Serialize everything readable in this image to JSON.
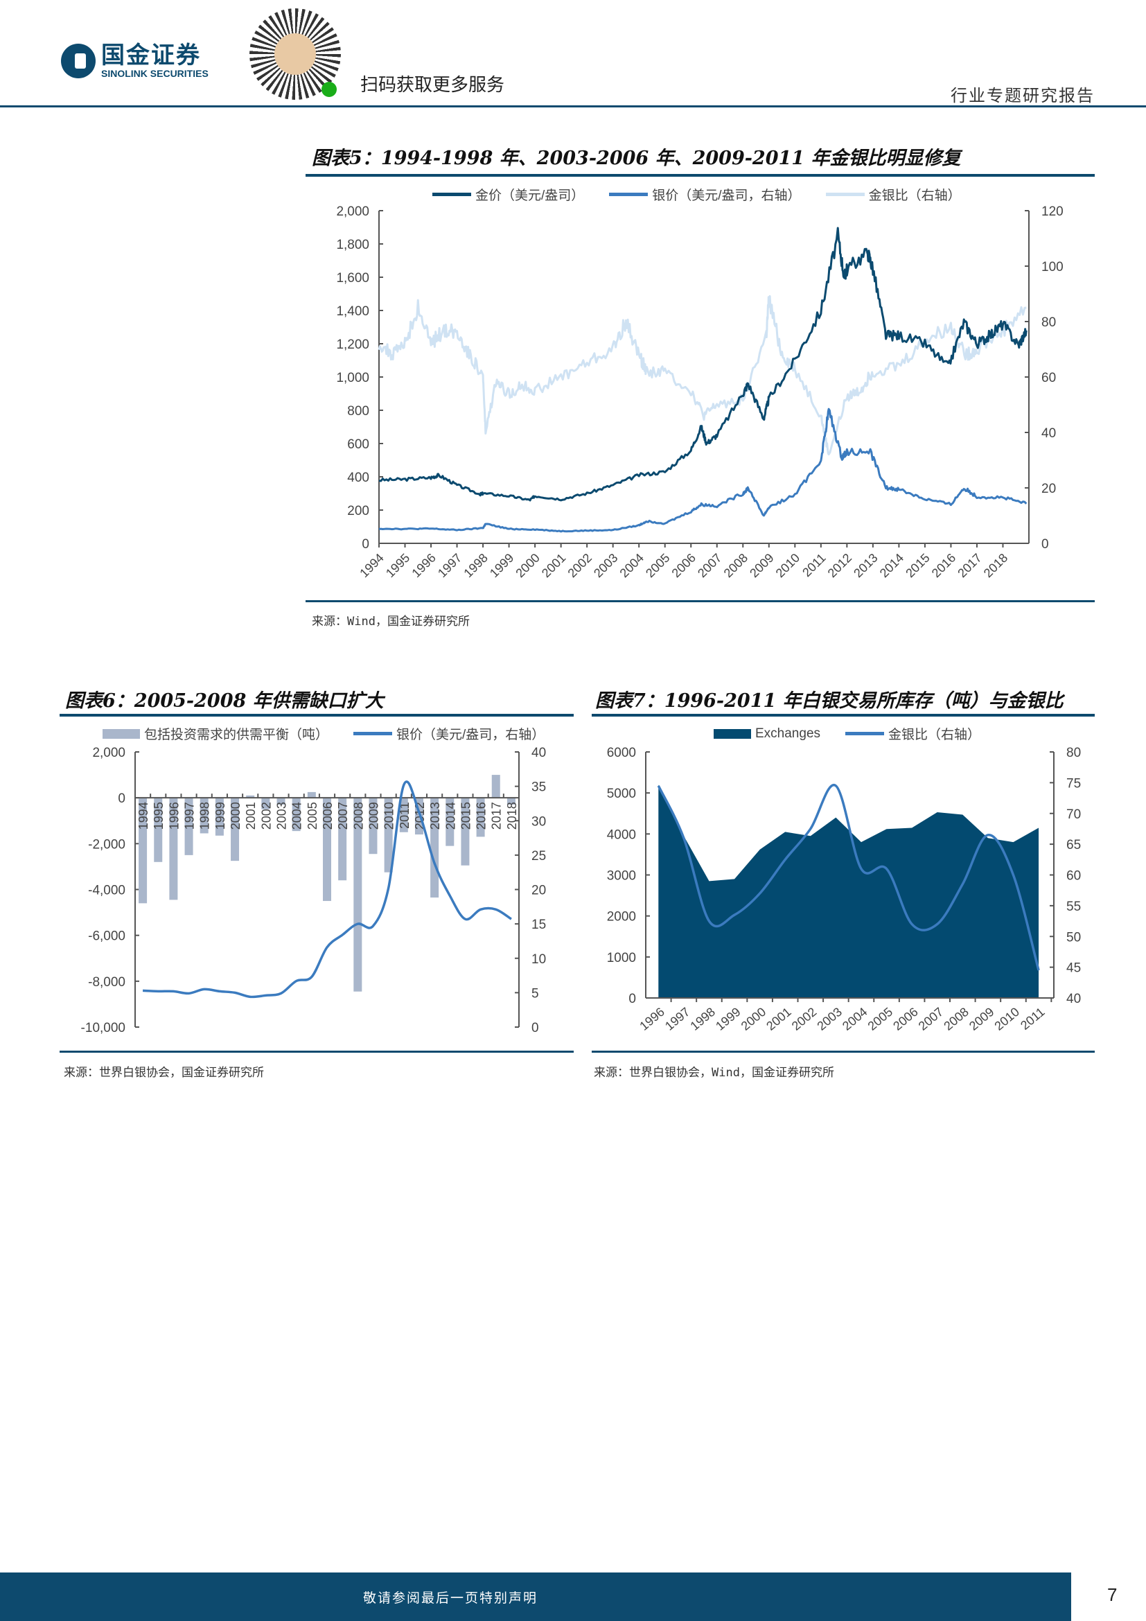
{
  "header": {
    "logo_cn": "国金证券",
    "logo_en": "SINOLINK SECURITIES",
    "scan_text": "扫码获取更多服务",
    "doc_type": "行业专题研究报告"
  },
  "colors": {
    "brand": "#0d4a6e",
    "gold": "#0b4a6f",
    "silver": "#3b7bbf",
    "ratio": "#cfe2f3",
    "bar": "#a9b6cb",
    "area": "#034a70"
  },
  "fig5": {
    "title": "图表5：1994-1998 年、2003-2006 年、2009-2011 年金银比明显修复",
    "legend": [
      "金价（美元/盎司）",
      "银价（美元/盎司，右轴）",
      "金银比（右轴）"
    ],
    "source": "来源：Wind，国金证券研究所"
  },
  "fig6": {
    "title": "图表6：2005-2008 年供需缺口扩大",
    "legend": [
      "包括投资需求的供需平衡（吨）",
      "银价（美元/盎司，右轴）"
    ],
    "source": "来源：世界白银协会，国金证券研究所"
  },
  "fig7": {
    "title": "图表7：1996-2011 年白银交易所库存（吨）与金银比",
    "legend": [
      "Exchanges",
      "金银比（右轴）"
    ],
    "source": "来源：世界白银协会，Wind，国金证券研究所"
  },
  "footer": {
    "notice": "敬请参阅最后一页特别声明",
    "page": "7"
  },
  "chart_data": [
    {
      "type": "line",
      "title": "图表5",
      "x_ticks": [
        "1994",
        "1995",
        "1996",
        "1997",
        "1998",
        "1999",
        "2000",
        "2001",
        "2002",
        "2003",
        "2004",
        "2005",
        "2006",
        "2007",
        "2008",
        "2009",
        "2010",
        "2011",
        "2012",
        "2013",
        "2014",
        "2015",
        "2016",
        "2017",
        "2018"
      ],
      "xlim": [
        1994,
        2019
      ],
      "ylim_left": [
        0,
        2000
      ],
      "yticks_left": [
        "0",
        "200",
        "400",
        "600",
        "800",
        "1,000",
        "1,200",
        "1,400",
        "1,600",
        "1,800",
        "2,000"
      ],
      "ylim_right": [
        0,
        120
      ],
      "yticks_right": [
        "0",
        "20",
        "40",
        "60",
        "80",
        "100",
        "120"
      ],
      "series": [
        {
          "name": "金价（美元/盎司）",
          "axis": "left",
          "x": [
            1994,
            1995,
            1996,
            1996.3,
            1997,
            1997.9,
            1998,
            1999,
            1999.8,
            2000,
            2001,
            2002,
            2003,
            2004,
            2005,
            2006,
            2006.4,
            2006.6,
            2007,
            2008,
            2008.2,
            2008.8,
            2009,
            2010,
            2011,
            2011.65,
            2011.9,
            2012,
            2012.8,
            2013,
            2013.5,
            2014,
            2015,
            2015.9,
            2016.5,
            2017,
            2017.5,
            2018,
            2018.6,
            2018.9
          ],
          "y": [
            380,
            385,
            395,
            410,
            350,
            295,
            300,
            285,
            260,
            285,
            265,
            300,
            350,
            410,
            430,
            560,
            700,
            600,
            650,
            900,
            960,
            750,
            870,
            1100,
            1400,
            1850,
            1600,
            1650,
            1750,
            1650,
            1250,
            1250,
            1200,
            1060,
            1330,
            1200,
            1250,
            1320,
            1190,
            1280
          ]
        },
        {
          "name": "银价（美元/盎司，右轴）",
          "axis": "right",
          "x": [
            1994,
            1995,
            1996,
            1997,
            1998,
            1998.1,
            1999,
            2000,
            2001,
            2002,
            2003,
            2004,
            2004.3,
            2005,
            2006,
            2006.4,
            2007,
            2008,
            2008.2,
            2008.8,
            2009,
            2010,
            2011,
            2011.3,
            2011.8,
            2012,
            2012.9,
            2013.5,
            2014,
            2015,
            2016,
            2016.5,
            2017,
            2018,
            2018.9
          ],
          "y": [
            5.3,
            5.2,
            5.3,
            4.8,
            5.5,
            7,
            5.2,
            5.0,
            4.4,
            4.6,
            4.8,
            6.5,
            8,
            7.2,
            11.5,
            14,
            13.5,
            18,
            20,
            10,
            13,
            17.5,
            30,
            48,
            31,
            33,
            33,
            20,
            19.5,
            16,
            14,
            20,
            16.8,
            16.5,
            14.3
          ]
        },
        {
          "name": "金银比（右轴）",
          "axis": "right",
          "x": [
            1994,
            1994.5,
            1995,
            1995.5,
            1996,
            1996.5,
            1997,
            1997.5,
            1998,
            1998.1,
            1998.5,
            1999,
            1999.5,
            2000,
            2001,
            2002,
            2003,
            2003.5,
            2004,
            2004.3,
            2005,
            2006,
            2006.5,
            2007,
            2008,
            2008.9,
            2009,
            2009.5,
            2010,
            2011,
            2011.3,
            2012,
            2012.5,
            2013,
            2014,
            2015,
            2016,
            2016.6,
            2017,
            2018,
            2018.9
          ],
          "y": [
            72,
            68,
            72,
            85,
            72,
            77,
            76,
            68,
            60,
            40,
            58,
            54,
            57,
            55,
            60,
            65,
            70,
            80,
            68,
            62,
            62,
            55,
            46,
            50,
            52,
            75,
            88,
            68,
            63,
            46,
            32,
            53,
            55,
            62,
            64,
            73,
            78,
            68,
            70,
            77,
            85
          ]
        }
      ]
    },
    {
      "type": "bar+line",
      "title": "图表6",
      "categories": [
        "1994",
        "1995",
        "1996",
        "1997",
        "1998",
        "1999",
        "2000",
        "2001",
        "2002",
        "2003",
        "2004",
        "2005",
        "2006",
        "2007",
        "2008",
        "2009",
        "2010",
        "2011",
        "2012",
        "2013",
        "2014",
        "2015",
        "2016",
        "2017",
        "2018"
      ],
      "ylim_left": [
        -10000,
        2000
      ],
      "yticks_left": [
        "-10,000",
        "-8,000",
        "-6,000",
        "-4,000",
        "-2,000",
        "0",
        "2,000"
      ],
      "ylim_right": [
        0,
        40
      ],
      "yticks_right": [
        "0",
        "5",
        "10",
        "15",
        "20",
        "25",
        "30",
        "35",
        "40"
      ],
      "series": [
        {
          "name": "包括投资需求的供需平衡（吨）",
          "type": "bar",
          "axis": "left",
          "values": [
            -4600,
            -2800,
            -4450,
            -2500,
            -1550,
            -1650,
            -2750,
            100,
            -500,
            -300,
            -1450,
            250,
            -4500,
            -3600,
            -8450,
            -2450,
            -3250,
            -1500,
            -1600,
            -4350,
            -2100,
            -2950,
            -1700,
            1000,
            -300
          ]
        },
        {
          "name": "银价（美元/盎司，右轴）",
          "type": "line",
          "axis": "right",
          "values": [
            5.3,
            5.2,
            5.2,
            4.9,
            5.5,
            5.2,
            5.0,
            4.4,
            4.6,
            4.9,
            6.7,
            7.3,
            11.6,
            13.4,
            15.0,
            14.7,
            20.2,
            35.2,
            31.2,
            23.8,
            19.1,
            15.7,
            17.1,
            17.1,
            15.7
          ]
        }
      ]
    },
    {
      "type": "area+line",
      "title": "图表7",
      "categories": [
        "1996",
        "1997",
        "1998",
        "1999",
        "2000",
        "2001",
        "2002",
        "2003",
        "2004",
        "2005",
        "2006",
        "2007",
        "2008",
        "2009",
        "2010",
        "2011"
      ],
      "ylim_left": [
        0,
        6000
      ],
      "yticks_left": [
        "0",
        "1000",
        "2000",
        "3000",
        "4000",
        "5000",
        "6000"
      ],
      "ylim_right": [
        40,
        80
      ],
      "yticks_right": [
        "40",
        "45",
        "50",
        "55",
        "60",
        "65",
        "70",
        "75",
        "80"
      ],
      "series": [
        {
          "name": "Exchanges",
          "type": "area",
          "axis": "left",
          "values": [
            5200,
            3950,
            2850,
            2900,
            3620,
            4050,
            3950,
            4400,
            3800,
            4120,
            4150,
            4530,
            4470,
            3900,
            3800,
            4150
          ]
        },
        {
          "name": "金银比（右轴）",
          "type": "line",
          "axis": "right",
          "values": [
            74.5,
            66,
            52.5,
            53.5,
            57,
            62.5,
            67.5,
            74.5,
            61,
            61,
            52,
            52,
            58.5,
            66.5,
            60,
            44.5
          ]
        }
      ]
    }
  ]
}
